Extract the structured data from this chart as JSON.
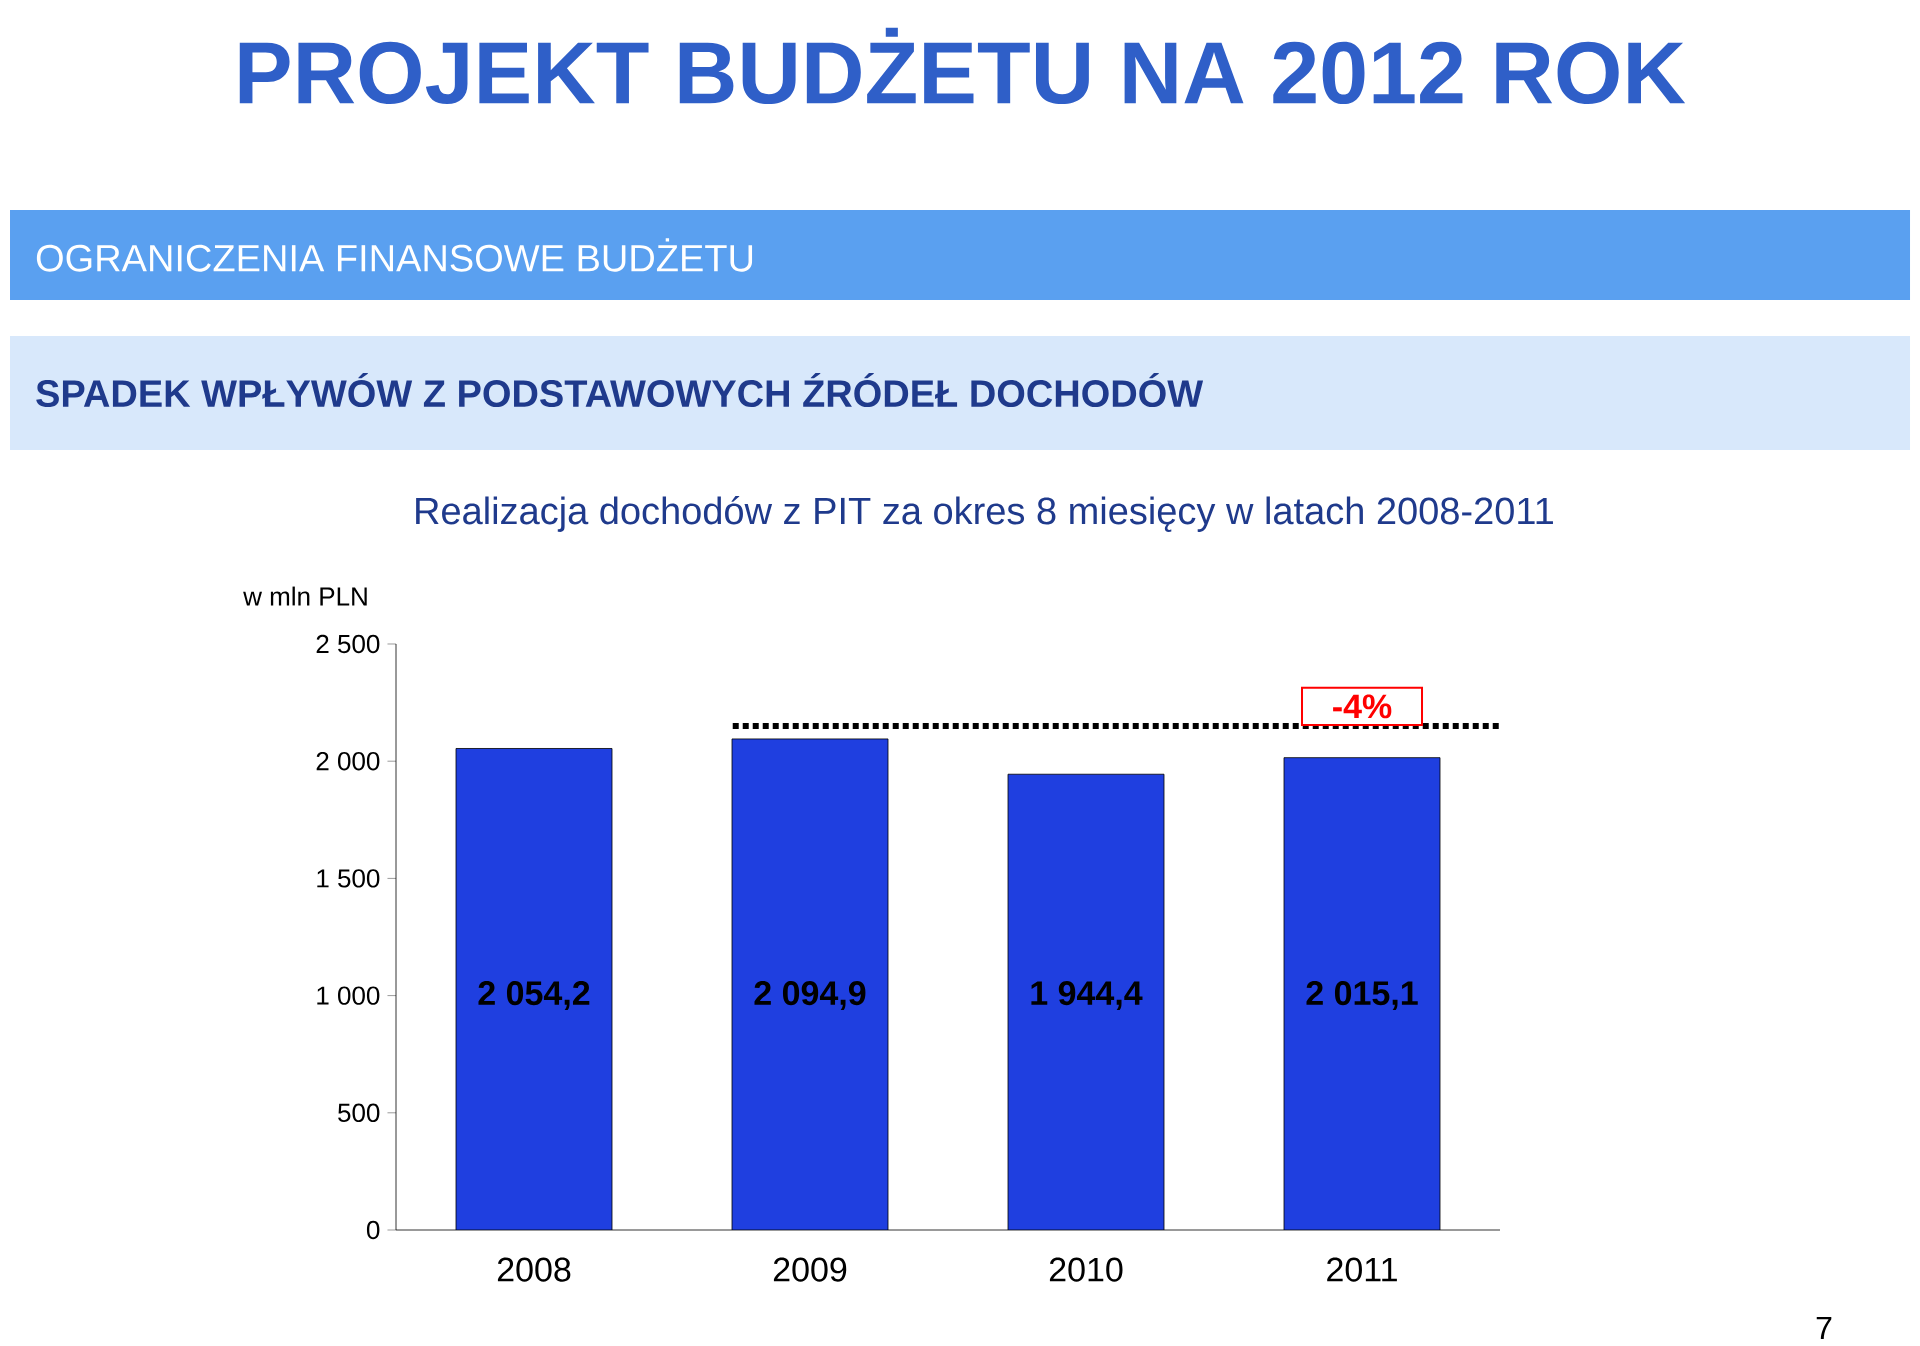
{
  "chart_data": {
    "type": "bar",
    "title": "PROJEKT BUDŻETU NA 2012 ROK",
    "subtitle": "Realizacja dochodów z PIT za okres 8 miesięcy w latach 2008-2011",
    "annotations": [
      "OGRANICZENIA FINANSOWE BUDŻETU",
      "SPADEK WPŁYWÓW Z PODSTAWOWYCH ŹRÓDEŁ DOCHODÓW",
      "7",
      {
        "text": "-4%",
        "x": "2011",
        "y": 2150
      }
    ],
    "ylabel": "w mln PLN",
    "categories": [
      "2008",
      "2009",
      "2010",
      "2011"
    ],
    "values": [
      2054.2,
      2094.9,
      1944.4,
      2015.1
    ],
    "value_labels": [
      "2 054,2",
      "2 094,9",
      "1 944,4",
      "2 015,1"
    ],
    "color": "#1f3fe0",
    "ylim": [
      0,
      2500
    ],
    "yticks": [
      0,
      {
        "value": 500,
        "label": "500"
      },
      {
        "value": 1000,
        "label": "1 000"
      },
      {
        "value": 1500,
        "label": "1 500"
      },
      {
        "value": 2000,
        "label": "2 000"
      },
      {
        "value": 2500,
        "label": "2 500"
      }
    ],
    "ref_lines": [
      {
        "axis": "y",
        "value": 2150,
        "color": "#000000",
        "line_style": "dotted"
      }
    ]
  }
}
